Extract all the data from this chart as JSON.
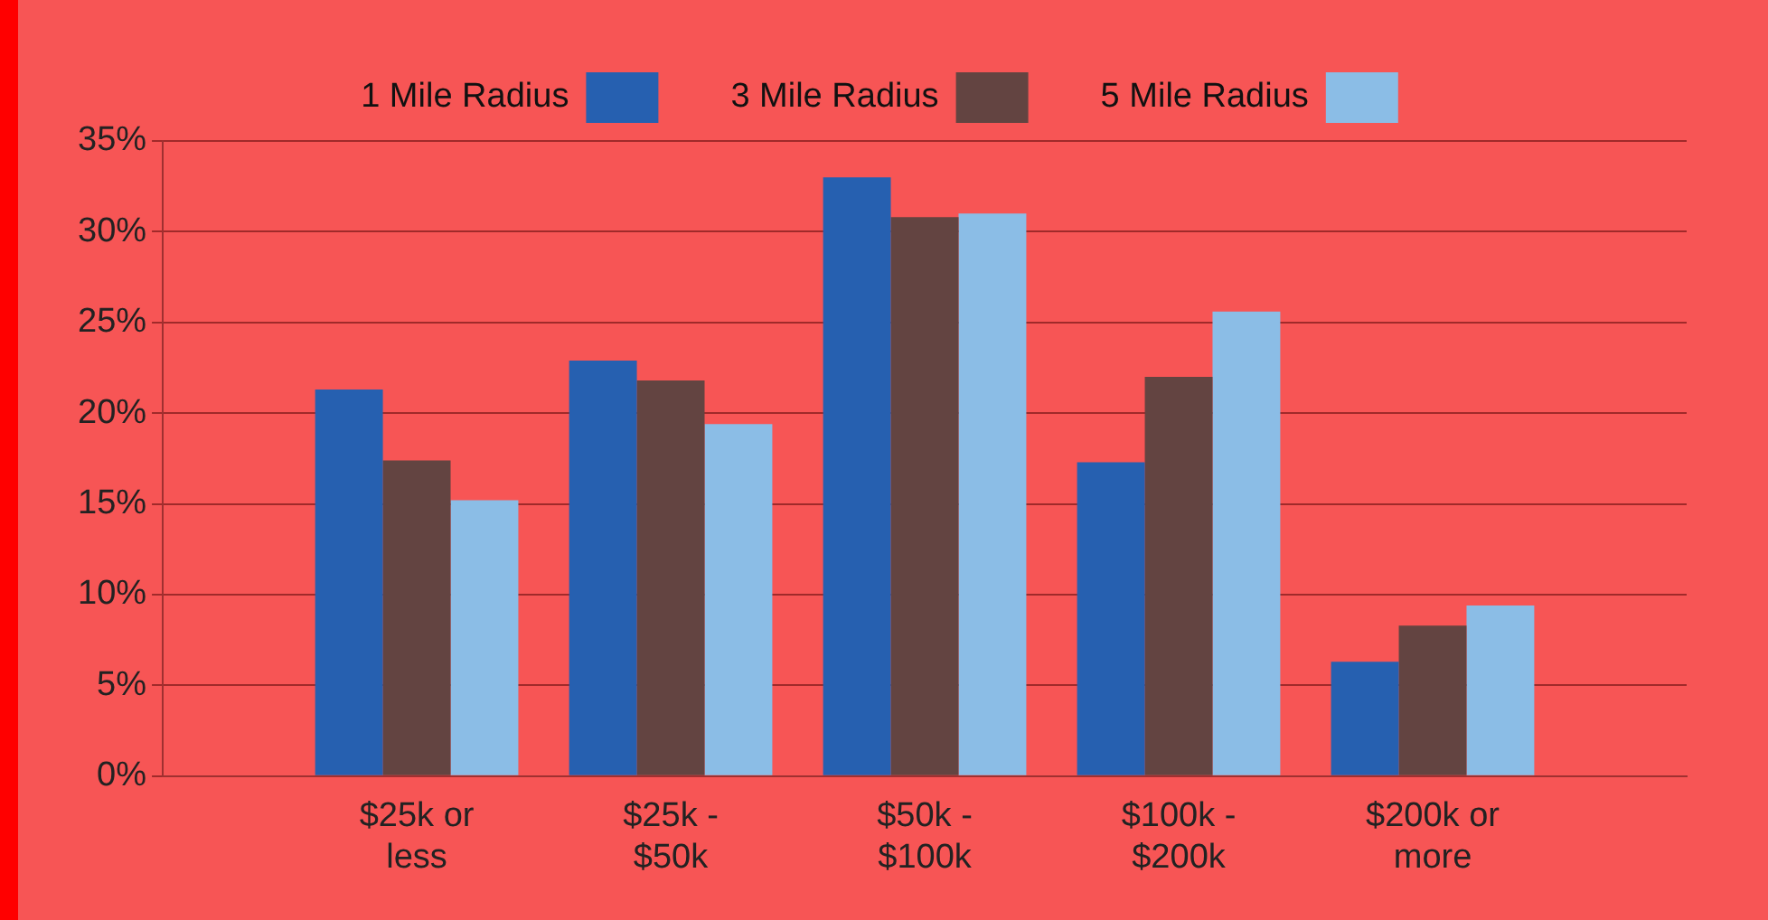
{
  "chart_data": {
    "type": "bar",
    "categories": [
      "$25k or less",
      "$25k - $50k",
      "$50k - $100k",
      "$100k - $200k",
      "$200k or more"
    ],
    "series": [
      {
        "name": "1 Mile Radius",
        "color": "#2660b0",
        "values": [
          21.3,
          22.9,
          33.0,
          17.3,
          6.3
        ]
      },
      {
        "name": "3 Mile Radius",
        "color": "#634441",
        "values": [
          17.4,
          21.8,
          30.8,
          22.0,
          8.3
        ]
      },
      {
        "name": "5 Mile Radius",
        "color": "#8bbde6",
        "values": [
          15.2,
          19.4,
          31.0,
          25.6,
          9.4
        ]
      }
    ],
    "ylim": [
      0,
      35
    ],
    "yticks": [
      {
        "value": 0,
        "label": "0%"
      },
      {
        "value": 5,
        "label": "5%"
      },
      {
        "value": 10,
        "label": "10%"
      },
      {
        "value": 15,
        "label": "15%"
      },
      {
        "value": 20,
        "label": "20%"
      },
      {
        "value": 25,
        "label": "25%"
      },
      {
        "value": 30,
        "label": "30%"
      },
      {
        "value": 35,
        "label": "35%"
      }
    ],
    "grid": "y",
    "legend": "top"
  }
}
